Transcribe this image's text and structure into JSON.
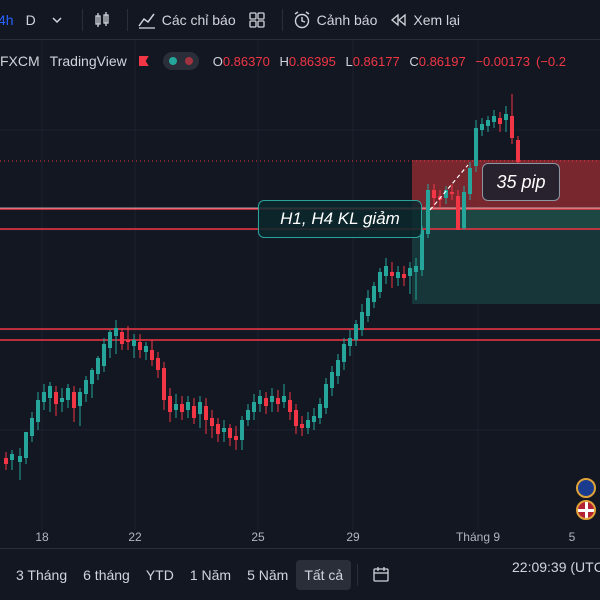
{
  "toolbar": {
    "timeframe": "4h",
    "chart_type_label": "D",
    "indicators": "Các chỉ báo",
    "alerts": "Cảnh báo",
    "replay": "Xem lại"
  },
  "legend": {
    "symbol": "FXCM",
    "source": "TradingView",
    "open_key": "O",
    "open": "0.86370",
    "high_key": "H",
    "high": "0.86395",
    "low_key": "L",
    "low": "0.86177",
    "close_key": "C",
    "close": "0.86197",
    "change": "−0.00173",
    "change_pct": "(−0.2"
  },
  "annotations": {
    "trend_note": "H1, H4 KL giảm",
    "pip_note": "35 pip"
  },
  "x_axis": [
    "18",
    "22",
    "25",
    "29",
    "Tháng 9",
    "5"
  ],
  "bottom": {
    "ranges": [
      "3 Tháng",
      "6 tháng",
      "YTD",
      "1 Năm",
      "5 Năm",
      "Tất cả"
    ],
    "active_range": "Tất cả",
    "clock": "22:09:39 (UTC"
  },
  "colors": {
    "up": "#26a69a",
    "down": "#f23645",
    "background": "#131722",
    "accent": "#2962ff"
  },
  "icons": [
    "chevron-down-icon",
    "candles-icon",
    "indicators-icon",
    "templates-icon",
    "alert-clock-icon",
    "replay-icon",
    "compare-icon",
    "eu-flag-icon",
    "uk-flag-icon"
  ]
}
